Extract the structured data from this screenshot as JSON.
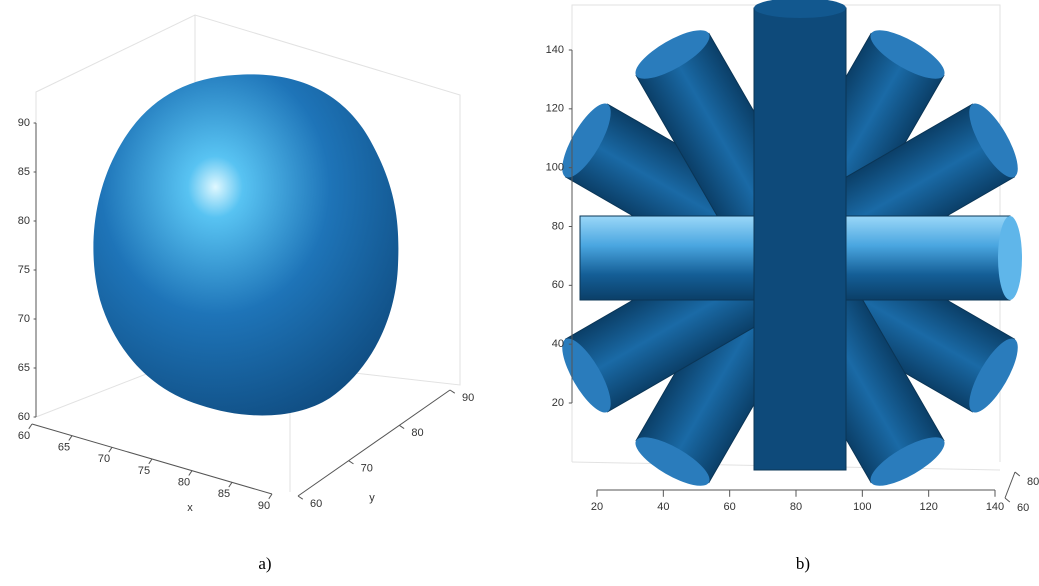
{
  "chart_data": [
    {
      "type": "isosurface",
      "xlabel": "x",
      "ylabel": "y",
      "xlim": [
        60,
        90
      ],
      "xticks": [
        60,
        65,
        70,
        75,
        80,
        85,
        90
      ],
      "ylim": [
        60,
        90
      ],
      "yticks": [
        60,
        70,
        80,
        90
      ],
      "zlim": [
        60,
        90
      ],
      "zticks": [
        60,
        65,
        70,
        75,
        80,
        85,
        90
      ],
      "color": "#1f6fb5",
      "grid": true,
      "caption": "a)"
    },
    {
      "type": "isosurface",
      "xlim": [
        20,
        140
      ],
      "xticks": [
        20,
        40,
        60,
        80,
        100,
        120,
        140
      ],
      "ylim": [
        60,
        80
      ],
      "yticks": [
        60,
        80
      ],
      "zlim": [
        20,
        140
      ],
      "zticks": [
        20,
        40,
        60,
        80,
        100,
        120,
        140
      ],
      "color": "#0d4f82",
      "grid": true,
      "caption": "b)"
    }
  ]
}
